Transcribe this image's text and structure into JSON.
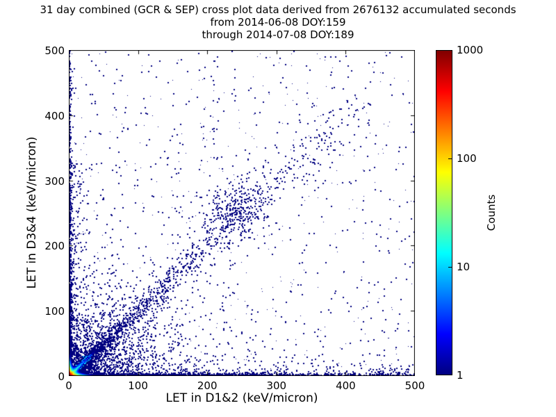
{
  "title": {
    "line1": "31 day combined (GCR & SEP) cross plot data derived from 2676132 accumulated seconds",
    "line2": "from 2014-06-08 DOY:159",
    "line3": "through 2014-07-08 DOY:189"
  },
  "chart_data": {
    "type": "scatter",
    "subtype": "2d-histogram cross plot, log-color counts",
    "xlabel": "LET in D1&2 (keV/micron)",
    "ylabel": "LET in D3&4 (keV/micron)",
    "xlim": [
      0,
      500
    ],
    "ylim": [
      0,
      500
    ],
    "xticks": [
      0,
      100,
      200,
      300,
      400,
      500
    ],
    "yticks": [
      0,
      100,
      200,
      300,
      400,
      500
    ],
    "grid": false,
    "point_color_single_count": "#000080",
    "colorbar": {
      "label": "Counts",
      "scale": "log",
      "range": [
        1,
        1000
      ],
      "ticks": [
        1,
        10,
        100,
        1000
      ],
      "colormap": "jet",
      "stops": [
        [
          0,
          "#000080"
        ],
        [
          0.125,
          "#0000ff"
        ],
        [
          0.375,
          "#00ffff"
        ],
        [
          0.625,
          "#ffff00"
        ],
        [
          0.875,
          "#ff0000"
        ],
        [
          1,
          "#800000"
        ]
      ]
    },
    "features": [
      "hot core at origin (0-10,0-10) peaking near 1000 counts (dark red at corner, orange/yellow/green rings)",
      "cyan-to-blue streak along y=x from origin out to about (30,30)",
      "sparse dark-blue diagonal band along y=x out to about (420,420), denser blob centered near (237,252)",
      "dense single-count column hugging x=0 up to y~500 and row hugging y=0 out to x~500",
      "fan of points between the diagonal and both axes below ~(170,170)",
      "isolated single-count points scattered over the whole plane, densest in the lower-left quadrant"
    ],
    "heatfield": {
      "cell_units": 2,
      "extent_units": 40,
      "corner_amp": 900,
      "corner_scale": 2.8,
      "edge_amp": 300,
      "edge_hug_scale": 1.1,
      "edge_run_scale": 6,
      "diag_amp": 60,
      "diag_width_scale": 2.2,
      "diag_run_scale": 9,
      "log_max": 3
    },
    "point_groups": [
      {
        "name": "background-uniform",
        "count": 600,
        "seed": 11,
        "size": 2,
        "color": "#000080",
        "kind": "xy",
        "x": {
          "type": "uniform",
          "min": 0,
          "max": 500
        },
        "y": {
          "type": "uniform",
          "min": 0,
          "max": 500
        }
      },
      {
        "name": "background-lowerleft",
        "count": 800,
        "seed": 12,
        "size": 2,
        "color": "#000080",
        "kind": "xy",
        "x": {
          "type": "exp",
          "scale": 90,
          "max": 500
        },
        "y": {
          "type": "exp",
          "scale": 70,
          "max": 500
        }
      },
      {
        "name": "left-edge-column",
        "count": 900,
        "seed": 13,
        "size": 2,
        "color": "#000080",
        "kind": "xy",
        "x": {
          "type": "exp",
          "scale": 1.4,
          "max": 6
        },
        "y": {
          "type": "exp",
          "scale": 130,
          "max": 500
        }
      },
      {
        "name": "left-edge-tail",
        "count": 260,
        "seed": 14,
        "size": 2,
        "color": "#000080",
        "kind": "xy",
        "x": {
          "type": "exp",
          "scale": 1.4,
          "max": 6
        },
        "y": {
          "type": "uniform",
          "min": 0,
          "max": 500
        }
      },
      {
        "name": "left-inner-spread",
        "count": 280,
        "seed": 15,
        "size": 2,
        "color": "#000080",
        "kind": "xy",
        "x": {
          "type": "exp",
          "scale": 9,
          "max": 40
        },
        "y": {
          "type": "uniform",
          "min": 0,
          "max": 330
        }
      },
      {
        "name": "bottom-edge-row",
        "count": 1100,
        "seed": 16,
        "size": 2,
        "color": "#000080",
        "kind": "xy",
        "x": {
          "type": "exp",
          "scale": 140,
          "max": 500
        },
        "y": {
          "type": "exp",
          "scale": 1.4,
          "max": 6
        }
      },
      {
        "name": "bottom-edge-tail",
        "count": 450,
        "seed": 17,
        "size": 2,
        "color": "#000080",
        "kind": "xy",
        "x": {
          "type": "uniform",
          "min": 0,
          "max": 500
        },
        "y": {
          "type": "exp",
          "scale": 1.4,
          "max": 6
        }
      },
      {
        "name": "bottom-inner-spread",
        "count": 300,
        "seed": 18,
        "size": 2,
        "color": "#000080",
        "kind": "xy",
        "x": {
          "type": "uniform",
          "min": 0,
          "max": 500
        },
        "y": {
          "type": "exp",
          "scale": 9,
          "max": 40
        }
      },
      {
        "name": "fan-below-diagonal",
        "count": 900,
        "seed": 19,
        "size": 2,
        "color": "#000080",
        "kind": "fan",
        "axis": "x",
        "scale": 45,
        "max": 170
      },
      {
        "name": "fan-above-diagonal",
        "count": 350,
        "seed": 20,
        "size": 2,
        "color": "#000080",
        "kind": "fan",
        "axis": "y",
        "scale": 45,
        "max": 170
      },
      {
        "name": "diagonal-mid",
        "count": 800,
        "seed": 22,
        "size": 2,
        "color": "#000080",
        "kind": "diag",
        "t": {
          "type": "exp",
          "scale": 60,
          "max": 440
        },
        "sigma0": 2.5,
        "sigmaSlope": 0.03
      },
      {
        "name": "diagonal-wide",
        "count": 300,
        "seed": 23,
        "size": 2,
        "color": "#000080",
        "kind": "diag",
        "t": {
          "type": "exp",
          "scale": 90,
          "max": 440
        },
        "sigma0": 12,
        "sigmaSlope": 0.05
      },
      {
        "name": "diagonal-upper",
        "count": 320,
        "seed": 24,
        "size": 2,
        "color": "#000080",
        "kind": "diag",
        "t": {
          "type": "uniform",
          "min": 130,
          "max": 420
        },
        "sigma0": 5,
        "sigmaSlope": 0.04
      },
      {
        "name": "diagonal-blob",
        "count": 260,
        "seed": 25,
        "size": 2,
        "color": "#000080",
        "kind": "gauss",
        "cx": 237,
        "cy": 252,
        "sx": 20,
        "sy": 22
      },
      {
        "name": "speckle",
        "count": 300,
        "seed": 26,
        "size": 1,
        "color": "#000080",
        "kind": "xy",
        "x": {
          "type": "uniform",
          "min": 0,
          "max": 500
        },
        "y": {
          "type": "uniform",
          "min": 0,
          "max": 500
        }
      },
      {
        "name": "diagonal-hot-streak",
        "count": 550,
        "seed": 21,
        "size": 2,
        "kind": "diag",
        "t": {
          "type": "exp",
          "scale": 9,
          "max": 26,
          "offset": 6
        },
        "sigma0": 1.2,
        "sigmaSlope": 0.02,
        "colormap": {
          "mode": "by-t",
          "tmax": 32,
          "jet0": 0.5,
          "jet1": 0.25
        }
      }
    ]
  }
}
